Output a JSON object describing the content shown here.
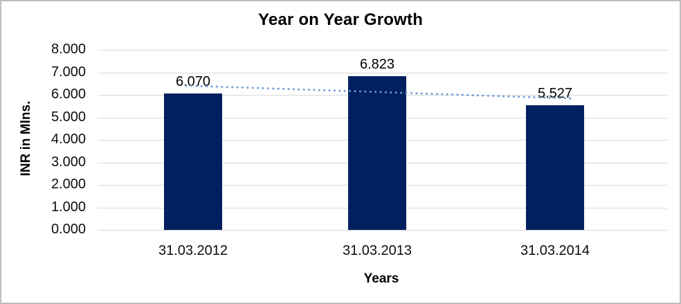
{
  "chart_data": {
    "type": "bar",
    "title": "Year on Year Growth",
    "xlabel": "Years",
    "ylabel": "INR in Mlns.",
    "categories": [
      "31.03.2012",
      "31.03.2013",
      "31.03.2014"
    ],
    "values": [
      6.07,
      6.823,
      5.527
    ],
    "value_labels": [
      "6.070",
      "6.823",
      "5.527"
    ],
    "ylim": [
      0,
      8
    ],
    "ytick_step": 1,
    "ytick_decimals": 3,
    "grid": "horizontal-only",
    "legend": "none",
    "bar_color": "#002060",
    "gridline_color": "#d9d9d9",
    "trendline": {
      "type": "linear",
      "style": "dotted",
      "color": "#6d9cd6",
      "start_value": 6.41,
      "end_value": 5.84
    }
  }
}
